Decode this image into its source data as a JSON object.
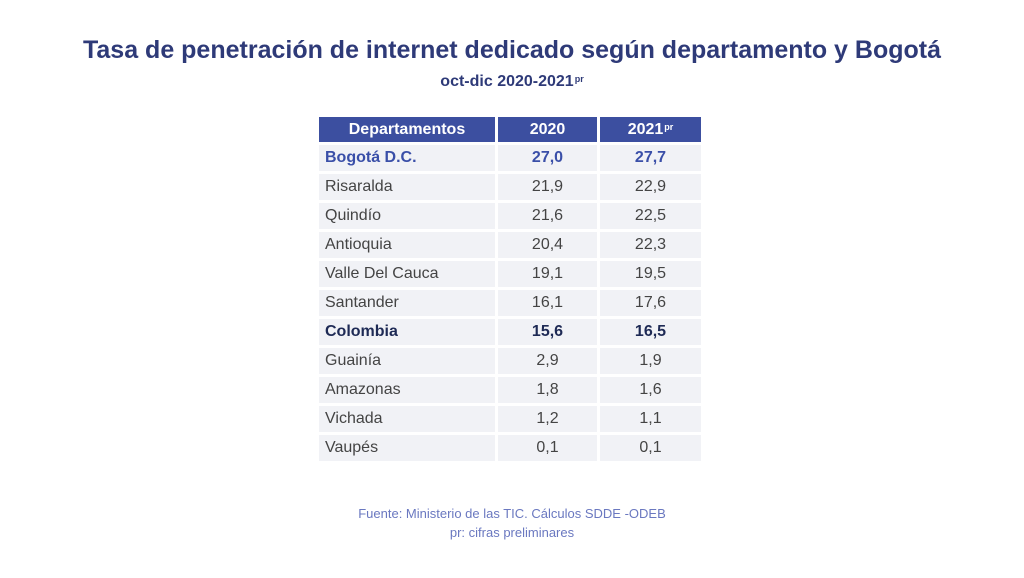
{
  "chart_data": {
    "type": "table",
    "title": "Tasa de penetración de internet dedicado según departamento y Bogotá",
    "subtitle": "oct-dic 2020-2021",
    "subtitle_sup": "pr",
    "columns": [
      {
        "label": "Departamentos",
        "sup": ""
      },
      {
        "label": "2020",
        "sup": ""
      },
      {
        "label": "2021",
        "sup": "pr"
      }
    ],
    "rows": [
      {
        "name": "Bogotá D.C.",
        "v2020": "27,0",
        "v2021": "27,7",
        "highlight": "bogota"
      },
      {
        "name": "Risaralda",
        "v2020": "21,9",
        "v2021": "22,9",
        "highlight": ""
      },
      {
        "name": "Quindío",
        "v2020": "21,6",
        "v2021": "22,5",
        "highlight": ""
      },
      {
        "name": "Antioquia",
        "v2020": "20,4",
        "v2021": "22,3",
        "highlight": ""
      },
      {
        "name": "Valle Del Cauca",
        "v2020": "19,1",
        "v2021": "19,5",
        "highlight": ""
      },
      {
        "name": "Santander",
        "v2020": "16,1",
        "v2021": "17,6",
        "highlight": ""
      },
      {
        "name": "Colombia",
        "v2020": "15,6",
        "v2021": "16,5",
        "highlight": "colombia"
      },
      {
        "name": "Guainía",
        "v2020": "2,9",
        "v2021": "1,9",
        "highlight": ""
      },
      {
        "name": "Amazonas",
        "v2020": "1,8",
        "v2021": "1,6",
        "highlight": ""
      },
      {
        "name": "Vichada",
        "v2020": "1,2",
        "v2021": "1,1",
        "highlight": ""
      },
      {
        "name": "Vaupés",
        "v2020": "0,1",
        "v2021": "0,1",
        "highlight": ""
      }
    ],
    "source": "Fuente: Ministerio de las TIC. Cálculos SDDE -ODEB",
    "note": "pr: cifras preliminares"
  },
  "colors": {
    "header_bg": "#3c4fa0",
    "title": "#2e3a78",
    "cell_bg": "#f1f2f6",
    "bogota_text": "#3a4fa8",
    "colombia_text": "#1e2a55",
    "source_text": "#6a78c0"
  }
}
